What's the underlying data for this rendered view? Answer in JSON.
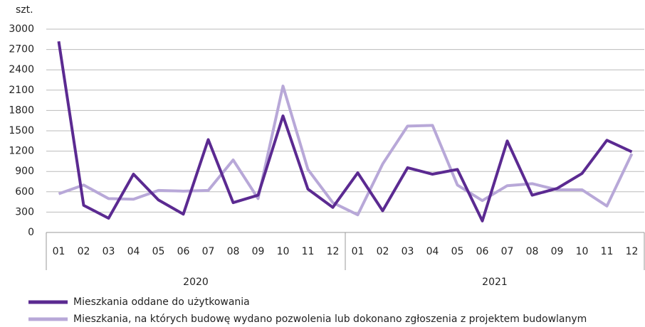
{
  "chart_data": {
    "type": "line",
    "y_label": "szt.",
    "categories": [
      "01",
      "02",
      "03",
      "04",
      "05",
      "06",
      "07",
      "08",
      "09",
      "10",
      "11",
      "12",
      "01",
      "02",
      "03",
      "04",
      "05",
      "06",
      "07",
      "08",
      "09",
      "10",
      "11",
      "12"
    ],
    "x_groups": [
      "2020",
      "2021"
    ],
    "series": [
      {
        "name": "Mieszkania oddane do użytkowania",
        "color": "#5b2a91",
        "values": [
          2820,
          400,
          210,
          860,
          480,
          270,
          1370,
          440,
          550,
          1720,
          640,
          370,
          880,
          320,
          955,
          860,
          930,
          170,
          1350,
          550,
          650,
          870,
          1360,
          1190
        ]
      },
      {
        "name": "Mieszkania, na których budowę wydano pozwolenia lub dokonano zgłoszenia z projektem budowlanym",
        "color": "#b8a8d8",
        "values": [
          570,
          700,
          500,
          490,
          620,
          610,
          620,
          1070,
          500,
          2160,
          930,
          440,
          260,
          1010,
          1570,
          1580,
          700,
          470,
          690,
          720,
          630,
          630,
          390,
          1160
        ]
      }
    ],
    "ylim": [
      0,
      3000
    ],
    "yticks": [
      0,
      300,
      600,
      900,
      1200,
      1500,
      1800,
      2100,
      2400,
      2700,
      3000
    ],
    "grid": true
  }
}
